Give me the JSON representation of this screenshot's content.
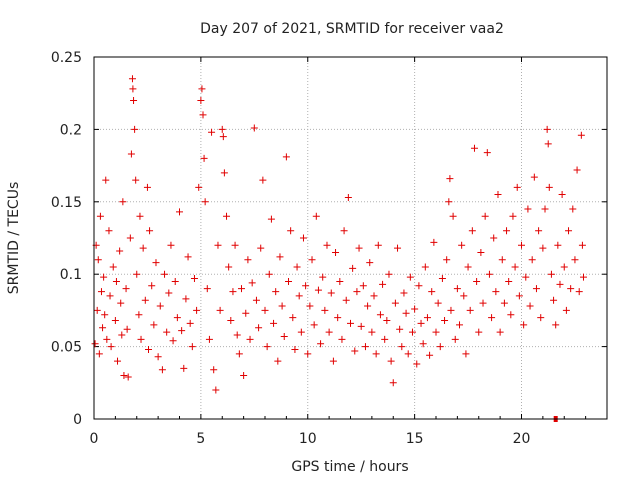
{
  "chart_data": {
    "type": "scatter",
    "title": "Day 207 of 2021, SRMTID for receiver vaa2",
    "xlabel": "GPS time / hours",
    "ylabel": "SRMTID / TECUs",
    "xlim": [
      0,
      24
    ],
    "ylim": [
      0,
      0.25
    ],
    "x_ticks": [
      0,
      5,
      10,
      15,
      20
    ],
    "y_ticks": [
      0,
      0.05,
      0.1,
      0.15,
      0.2,
      0.25
    ],
    "x_tick_labels": [
      "0",
      "5",
      "10",
      "15",
      "20"
    ],
    "y_tick_labels": [
      "0",
      "0.05",
      "0.1",
      "0.15",
      "0.2",
      "0.25"
    ],
    "grid": true,
    "marker": "+",
    "marker_color": "#e00000",
    "series": [
      {
        "name": "SRMTID",
        "points": [
          [
            0.05,
            0.052
          ],
          [
            0.1,
            0.12
          ],
          [
            0.15,
            0.075
          ],
          [
            0.2,
            0.11
          ],
          [
            0.25,
            0.045
          ],
          [
            0.3,
            0.14
          ],
          [
            0.35,
            0.088
          ],
          [
            0.4,
            0.063
          ],
          [
            0.45,
            0.098
          ],
          [
            0.5,
            0.072
          ],
          [
            0.55,
            0.165
          ],
          [
            0.6,
            0.055
          ],
          [
            0.7,
            0.13
          ],
          [
            0.75,
            0.085
          ],
          [
            0.8,
            0.05
          ],
          [
            0.9,
            0.105
          ],
          [
            1.0,
            0.068
          ],
          [
            1.05,
            0.095
          ],
          [
            1.1,
            0.04
          ],
          [
            1.2,
            0.116
          ],
          [
            1.25,
            0.08
          ],
          [
            1.3,
            0.058
          ],
          [
            1.35,
            0.15
          ],
          [
            1.4,
            0.03
          ],
          [
            1.5,
            0.09
          ],
          [
            1.55,
            0.062
          ],
          [
            1.6,
            0.029
          ],
          [
            1.7,
            0.125
          ],
          [
            1.75,
            0.183
          ],
          [
            1.8,
            0.235
          ],
          [
            1.82,
            0.228
          ],
          [
            1.85,
            0.22
          ],
          [
            1.9,
            0.2
          ],
          [
            1.95,
            0.165
          ],
          [
            2.0,
            0.1
          ],
          [
            2.1,
            0.072
          ],
          [
            2.15,
            0.14
          ],
          [
            2.2,
            0.055
          ],
          [
            2.3,
            0.118
          ],
          [
            2.4,
            0.082
          ],
          [
            2.5,
            0.16
          ],
          [
            2.55,
            0.048
          ],
          [
            2.6,
            0.13
          ],
          [
            2.7,
            0.092
          ],
          [
            2.8,
            0.065
          ],
          [
            2.9,
            0.108
          ],
          [
            3.0,
            0.043
          ],
          [
            3.1,
            0.078
          ],
          [
            3.2,
            0.034
          ],
          [
            3.3,
            0.1
          ],
          [
            3.4,
            0.06
          ],
          [
            3.5,
            0.087
          ],
          [
            3.6,
            0.12
          ],
          [
            3.7,
            0.054
          ],
          [
            3.8,
            0.095
          ],
          [
            3.9,
            0.07
          ],
          [
            4.0,
            0.143
          ],
          [
            4.1,
            0.061
          ],
          [
            4.2,
            0.035
          ],
          [
            4.3,
            0.083
          ],
          [
            4.4,
            0.112
          ],
          [
            4.5,
            0.066
          ],
          [
            4.6,
            0.05
          ],
          [
            4.7,
            0.097
          ],
          [
            4.8,
            0.075
          ],
          [
            4.9,
            0.16
          ],
          [
            5.0,
            0.22
          ],
          [
            5.05,
            0.228
          ],
          [
            5.1,
            0.21
          ],
          [
            5.15,
            0.18
          ],
          [
            5.2,
            0.15
          ],
          [
            5.3,
            0.09
          ],
          [
            5.4,
            0.055
          ],
          [
            5.5,
            0.198
          ],
          [
            5.6,
            0.034
          ],
          [
            5.7,
            0.02
          ],
          [
            5.8,
            0.12
          ],
          [
            5.9,
            0.075
          ],
          [
            6.0,
            0.2
          ],
          [
            6.05,
            0.195
          ],
          [
            6.1,
            0.17
          ],
          [
            6.2,
            0.14
          ],
          [
            6.3,
            0.105
          ],
          [
            6.4,
            0.068
          ],
          [
            6.5,
            0.088
          ],
          [
            6.6,
            0.12
          ],
          [
            6.7,
            0.058
          ],
          [
            6.8,
            0.045
          ],
          [
            6.9,
            0.09
          ],
          [
            7.0,
            0.03
          ],
          [
            7.1,
            0.073
          ],
          [
            7.2,
            0.11
          ],
          [
            7.3,
            0.055
          ],
          [
            7.4,
            0.094
          ],
          [
            7.5,
            0.201
          ],
          [
            7.6,
            0.082
          ],
          [
            7.7,
            0.063
          ],
          [
            7.8,
            0.118
          ],
          [
            7.9,
            0.165
          ],
          [
            8.0,
            0.075
          ],
          [
            8.1,
            0.05
          ],
          [
            8.2,
            0.1
          ],
          [
            8.3,
            0.138
          ],
          [
            8.4,
            0.066
          ],
          [
            8.5,
            0.088
          ],
          [
            8.6,
            0.04
          ],
          [
            8.7,
            0.112
          ],
          [
            8.8,
            0.078
          ],
          [
            8.9,
            0.057
          ],
          [
            9.0,
            0.181
          ],
          [
            9.1,
            0.095
          ],
          [
            9.2,
            0.13
          ],
          [
            9.3,
            0.07
          ],
          [
            9.4,
            0.048
          ],
          [
            9.5,
            0.105
          ],
          [
            9.6,
            0.085
          ],
          [
            9.7,
            0.06
          ],
          [
            9.8,
            0.125
          ],
          [
            9.9,
            0.092
          ],
          [
            10.0,
            0.045
          ],
          [
            10.1,
            0.078
          ],
          [
            10.2,
            0.11
          ],
          [
            10.3,
            0.065
          ],
          [
            10.4,
            0.14
          ],
          [
            10.5,
            0.089
          ],
          [
            10.6,
            0.052
          ],
          [
            10.7,
            0.098
          ],
          [
            10.8,
            0.075
          ],
          [
            10.9,
            0.12
          ],
          [
            11.0,
            0.06
          ],
          [
            11.1,
            0.087
          ],
          [
            11.2,
            0.04
          ],
          [
            11.3,
            0.115
          ],
          [
            11.4,
            0.07
          ],
          [
            11.5,
            0.095
          ],
          [
            11.6,
            0.055
          ],
          [
            11.7,
            0.13
          ],
          [
            11.8,
            0.082
          ],
          [
            11.9,
            0.153
          ],
          [
            12.0,
            0.066
          ],
          [
            12.1,
            0.104
          ],
          [
            12.2,
            0.047
          ],
          [
            12.3,
            0.088
          ],
          [
            12.4,
            0.118
          ],
          [
            12.5,
            0.064
          ],
          [
            12.6,
            0.092
          ],
          [
            12.7,
            0.05
          ],
          [
            12.8,
            0.078
          ],
          [
            12.9,
            0.108
          ],
          [
            13.0,
            0.06
          ],
          [
            13.1,
            0.085
          ],
          [
            13.2,
            0.045
          ],
          [
            13.3,
            0.12
          ],
          [
            13.4,
            0.072
          ],
          [
            13.5,
            0.093
          ],
          [
            13.6,
            0.055
          ],
          [
            13.7,
            0.068
          ],
          [
            13.8,
            0.1
          ],
          [
            13.9,
            0.04
          ],
          [
            14.0,
            0.025
          ],
          [
            14.1,
            0.08
          ],
          [
            14.2,
            0.118
          ],
          [
            14.3,
            0.062
          ],
          [
            14.4,
            0.05
          ],
          [
            14.5,
            0.087
          ],
          [
            14.6,
            0.073
          ],
          [
            14.7,
            0.045
          ],
          [
            14.8,
            0.098
          ],
          [
            14.9,
            0.06
          ],
          [
            15.0,
            0.076
          ],
          [
            15.1,
            0.038
          ],
          [
            15.2,
            0.092
          ],
          [
            15.3,
            0.066
          ],
          [
            15.4,
            0.052
          ],
          [
            15.5,
            0.105
          ],
          [
            15.6,
            0.07
          ],
          [
            15.7,
            0.044
          ],
          [
            15.8,
            0.088
          ],
          [
            15.9,
            0.122
          ],
          [
            16.0,
            0.06
          ],
          [
            16.1,
            0.08
          ],
          [
            16.2,
            0.05
          ],
          [
            16.3,
            0.097
          ],
          [
            16.4,
            0.068
          ],
          [
            16.5,
            0.11
          ],
          [
            16.6,
            0.15
          ],
          [
            16.65,
            0.166
          ],
          [
            16.7,
            0.075
          ],
          [
            16.8,
            0.14
          ],
          [
            16.9,
            0.055
          ],
          [
            17.0,
            0.09
          ],
          [
            17.1,
            0.065
          ],
          [
            17.2,
            0.12
          ],
          [
            17.3,
            0.085
          ],
          [
            17.4,
            0.045
          ],
          [
            17.5,
            0.105
          ],
          [
            17.6,
            0.075
          ],
          [
            17.7,
            0.13
          ],
          [
            17.8,
            0.187
          ],
          [
            17.9,
            0.095
          ],
          [
            18.0,
            0.06
          ],
          [
            18.1,
            0.115
          ],
          [
            18.2,
            0.08
          ],
          [
            18.3,
            0.14
          ],
          [
            18.4,
            0.184
          ],
          [
            18.5,
            0.1
          ],
          [
            18.6,
            0.07
          ],
          [
            18.7,
            0.125
          ],
          [
            18.8,
            0.088
          ],
          [
            18.9,
            0.155
          ],
          [
            19.0,
            0.06
          ],
          [
            19.1,
            0.11
          ],
          [
            19.2,
            0.08
          ],
          [
            19.3,
            0.13
          ],
          [
            19.4,
            0.095
          ],
          [
            19.5,
            0.072
          ],
          [
            19.6,
            0.14
          ],
          [
            19.7,
            0.105
          ],
          [
            19.8,
            0.16
          ],
          [
            19.9,
            0.085
          ],
          [
            20.0,
            0.12
          ],
          [
            20.1,
            0.065
          ],
          [
            20.2,
            0.098
          ],
          [
            20.3,
            0.145
          ],
          [
            20.4,
            0.078
          ],
          [
            20.5,
            0.11
          ],
          [
            20.6,
            0.167
          ],
          [
            20.7,
            0.09
          ],
          [
            20.8,
            0.13
          ],
          [
            20.9,
            0.07
          ],
          [
            21.0,
            0.118
          ],
          [
            21.1,
            0.145
          ],
          [
            21.2,
            0.2
          ],
          [
            21.25,
            0.19
          ],
          [
            21.3,
            0.16
          ],
          [
            21.4,
            0.1
          ],
          [
            21.5,
            0.082
          ],
          [
            21.6,
            0.065
          ],
          [
            21.7,
            0.12
          ],
          [
            21.8,
            0.093
          ],
          [
            21.9,
            0.155
          ],
          [
            22.0,
            0.105
          ],
          [
            22.1,
            0.075
          ],
          [
            22.2,
            0.13
          ],
          [
            22.3,
            0.09
          ],
          [
            22.4,
            0.145
          ],
          [
            22.5,
            0.11
          ],
          [
            22.6,
            0.172
          ],
          [
            22.7,
            0.088
          ],
          [
            22.8,
            0.196
          ],
          [
            22.85,
            0.12
          ],
          [
            22.9,
            0.098
          ]
        ]
      }
    ],
    "markers": [
      {
        "label": "red square marker",
        "x": 21.6,
        "y": 0.0
      }
    ]
  }
}
